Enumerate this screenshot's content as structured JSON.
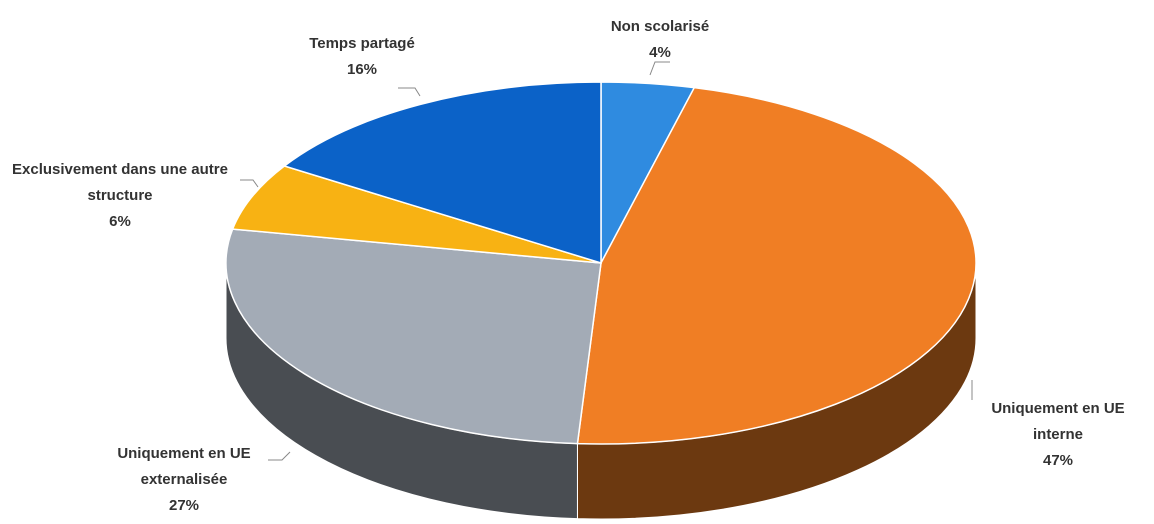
{
  "chart_data": {
    "type": "pie",
    "categories": [
      "Non scolarisé",
      "Uniquement en UE interne",
      "Uniquement en UE externalisée",
      "Exclusivement dans une autre structure",
      "Temps partagé"
    ],
    "values": [
      4,
      47,
      27,
      6,
      16
    ],
    "value_labels": [
      "4%",
      "47%",
      "27%",
      "6%",
      "16%"
    ],
    "colors": [
      "#2f8be0",
      "#f07e24",
      "#a3abb6",
      "#f8b213",
      "#0b62c8"
    ]
  }
}
